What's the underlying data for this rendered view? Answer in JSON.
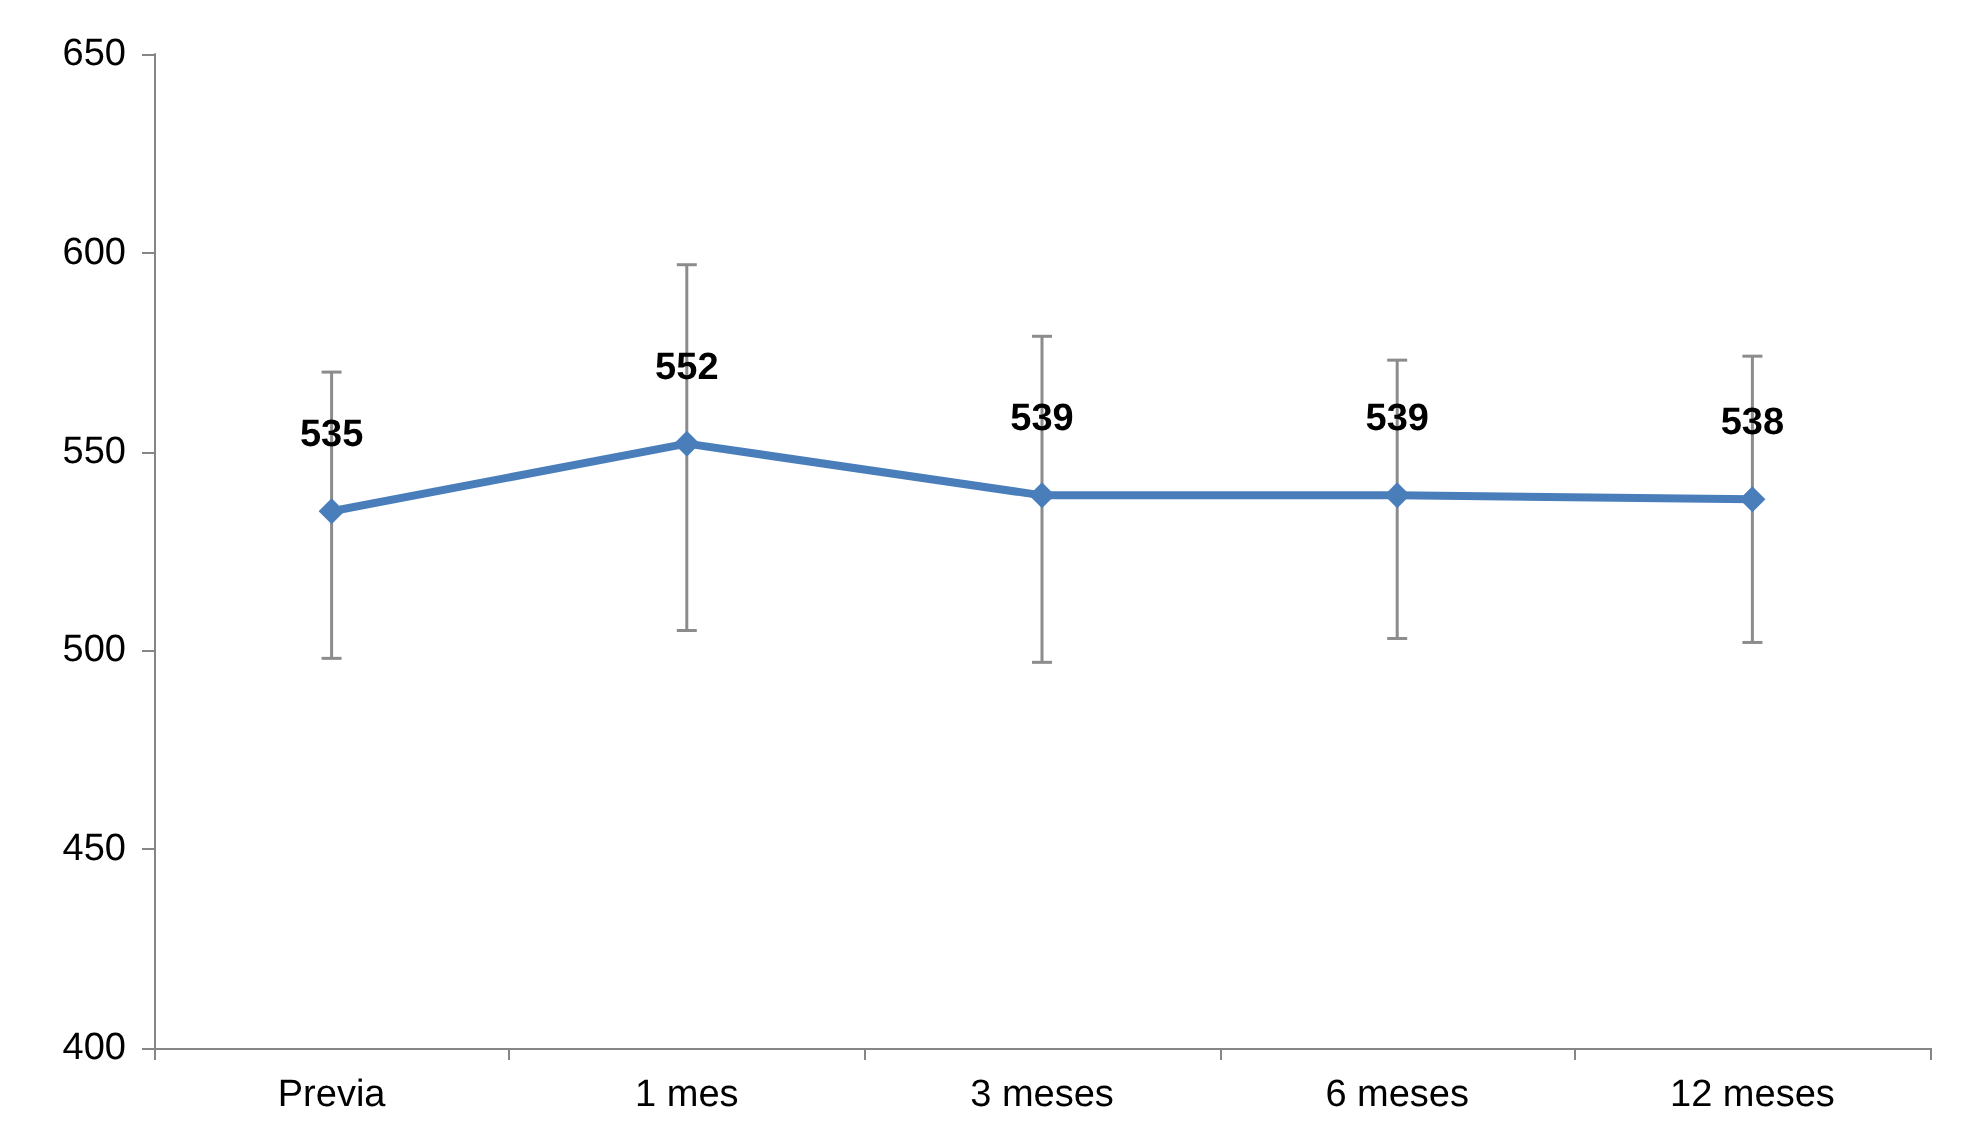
{
  "chart_data": {
    "type": "line",
    "categories": [
      "Previa",
      "1 mes",
      "3 meses",
      "6 meses",
      "12 meses"
    ],
    "series": [
      {
        "color": "#4a7ebb",
        "values": [
          535,
          552,
          539,
          539,
          538
        ],
        "errors": [
          [
            498,
            570
          ],
          [
            505,
            597
          ],
          [
            497,
            579
          ],
          [
            503,
            573
          ],
          [
            502,
            574
          ]
        ]
      }
    ],
    "ylim": [
      400,
      650
    ],
    "yticks": [
      400,
      450,
      500,
      550,
      600,
      650
    ],
    "grid": false,
    "marker": "diamond",
    "line_style": "solid",
    "data_labels": true
  }
}
